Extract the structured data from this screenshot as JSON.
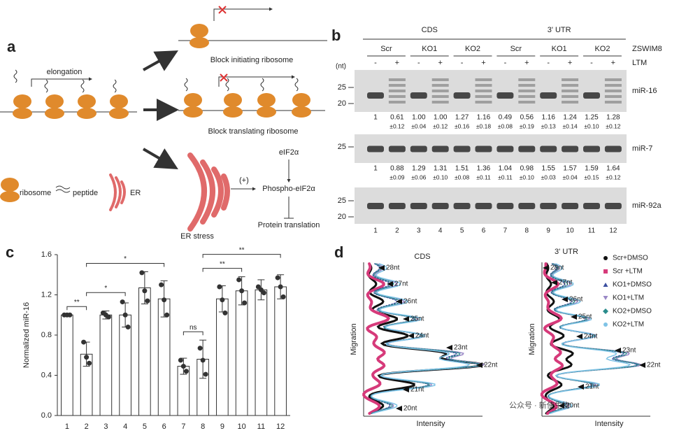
{
  "panel_a": {
    "label": "a",
    "elongation": "elongation",
    "block_initiating": "Block initiating ribosome",
    "block_translating": "Block translating ribosome",
    "key": {
      "ribosome": "ribosome",
      "peptide": "peptide",
      "er": "ER"
    },
    "er_stress": "ER stress",
    "plus": "(+)",
    "eif2a": "eIF2α",
    "phospho": "Phospho-eIF2α",
    "protein_translation": "Protein translation"
  },
  "panel_b": {
    "label": "b",
    "cds": "CDS",
    "utr": "3' UTR",
    "groups": [
      "Scr",
      "KO1",
      "KO2",
      "Scr",
      "KO1",
      "KO2"
    ],
    "zswim8": "ZSWIM8",
    "ltm": "LTM",
    "nt": "(nt)",
    "ltm_signs": [
      "-",
      "+",
      "-",
      "+",
      "-",
      "+",
      "-",
      "+",
      "-",
      "+",
      "-",
      "+"
    ],
    "blots": [
      {
        "name": "miR-16",
        "markers": [
          "25",
          "20"
        ],
        "means": [
          "1",
          "0.61",
          "1.00",
          "1.00",
          "1.27",
          "1.16",
          "0.49",
          "0.56",
          "1.16",
          "1.24",
          "1.25",
          "1.28"
        ],
        "errors": [
          null,
          "±0.12",
          "±0.04",
          "±0.12",
          "±0.16",
          "±0.18",
          "±0.08",
          "±0.19",
          "±0.13",
          "±0.14",
          "±0.10",
          "±0.12"
        ]
      },
      {
        "name": "miR-7",
        "markers": [
          "25"
        ],
        "means": [
          "1",
          "0.88",
          "1.29",
          "1.31",
          "1.51",
          "1.36",
          "1.04",
          "0.98",
          "1.55",
          "1.57",
          "1.59",
          "1.64"
        ],
        "errors": [
          null,
          "±0.09",
          "±0.06",
          "±0.10",
          "±0.08",
          "±0.11",
          "±0.11",
          "±0.10",
          "±0.03",
          "±0.04",
          "±0.15",
          "±0.12"
        ]
      },
      {
        "name": "miR-92a",
        "markers": [
          "25",
          "20"
        ]
      }
    ],
    "lanes": [
      "1",
      "2",
      "3",
      "4",
      "5",
      "6",
      "7",
      "8",
      "9",
      "10",
      "11",
      "12"
    ]
  },
  "chart_data": {
    "type": "bar",
    "panel": "c",
    "ylabel": "Normalized miR-16",
    "categories": [
      "1",
      "2",
      "3",
      "4",
      "5",
      "6",
      "7",
      "8",
      "9",
      "10",
      "11",
      "12"
    ],
    "values": [
      1.0,
      0.61,
      1.0,
      1.0,
      1.27,
      1.16,
      0.49,
      0.56,
      1.16,
      1.24,
      1.25,
      1.28
    ],
    "errors": [
      0,
      0.12,
      0.04,
      0.12,
      0.16,
      0.18,
      0.08,
      0.19,
      0.13,
      0.14,
      0.1,
      0.12
    ],
    "points": [
      [
        1,
        1,
        1
      ],
      [
        0.73,
        0.58,
        0.52
      ],
      [
        1.02,
        1.0,
        0.98
      ],
      [
        1.13,
        1.0,
        0.88
      ],
      [
        1.42,
        1.24,
        1.14
      ],
      [
        1.3,
        1.15,
        1.0
      ],
      [
        0.55,
        0.49,
        0.44
      ],
      [
        0.67,
        0.55,
        0.41
      ],
      [
        1.28,
        1.15,
        1.02
      ],
      [
        1.35,
        1.24,
        1.12
      ],
      [
        1.28,
        1.25,
        1.22
      ],
      [
        1.37,
        1.28,
        1.18
      ]
    ],
    "color": "#ffffff",
    "ylim": [
      0,
      1.6
    ],
    "yticks": [
      {
        "value": 0,
        "label": "0.0"
      },
      0.4,
      0.8,
      1.2,
      1.6
    ],
    "significance": [
      {
        "between": [
          "1",
          "2"
        ],
        "label": "**"
      },
      {
        "between": [
          "2",
          "4"
        ],
        "label": "*"
      },
      {
        "between": [
          "2",
          "6"
        ],
        "label": "*"
      },
      {
        "between": [
          "7",
          "8"
        ],
        "label": "ns"
      },
      {
        "between": [
          "8",
          "10"
        ],
        "label": "**"
      },
      {
        "between": [
          "8",
          "12"
        ],
        "label": "**"
      }
    ]
  },
  "panel_d": {
    "label": "d",
    "plots": [
      {
        "title": "CDS",
        "ylabel": "Migration",
        "xlabel": "Intensity",
        "nt": [
          "28nt",
          "27nt",
          "26nt",
          "25nt",
          "24nt",
          "23nt",
          "22nt",
          "21nt",
          "20nt"
        ]
      },
      {
        "title": "3' UTR",
        "ylabel": "Migration",
        "xlabel": "Intensity",
        "nt": [
          "28nt",
          "27nt",
          "26nt",
          "25nt",
          "24nt",
          "23nt",
          "22nt",
          "21nt",
          "20nt"
        ]
      }
    ],
    "legend": [
      {
        "name": "Scr+DMSO",
        "color": "#111111"
      },
      {
        "name": "Scr +LTM",
        "color": "#d63a7a"
      },
      {
        "name": "KO1+DMSO",
        "color": "#3b4fa0"
      },
      {
        "name": "KO1+LTM",
        "color": "#9a88c6"
      },
      {
        "name": "KO2+DMSO",
        "color": "#2a8c8c"
      },
      {
        "name": "KO2+LTM",
        "color": "#7fc3e6"
      }
    ],
    "watermark": "公众号 · 新使生物"
  }
}
